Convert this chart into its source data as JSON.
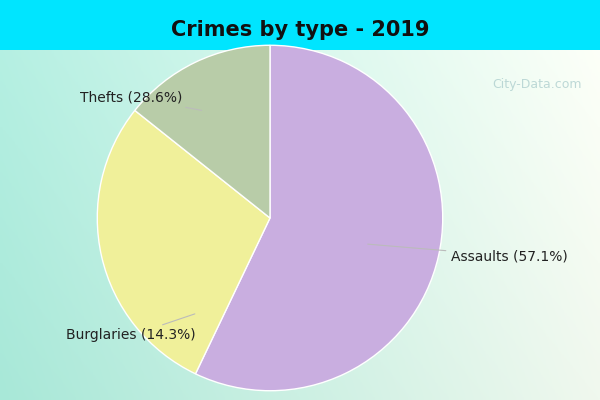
{
  "title": "Crimes by type - 2019",
  "slices": [
    {
      "label": "Assaults (57.1%)",
      "value": 57.1,
      "color": "#c9aee0"
    },
    {
      "label": "Thefts (28.6%)",
      "value": 28.6,
      "color": "#f0f09a"
    },
    {
      "label": "Burglaries (14.3%)",
      "value": 14.3,
      "color": "#b8cca8"
    }
  ],
  "bg_top_bar": "#00e5ff",
  "bg_left": "#a8e8d8",
  "bg_right": "#eaf5ee",
  "title_fontsize": 15,
  "label_fontsize": 10,
  "watermark": "City-Data.com",
  "startangle": 90
}
